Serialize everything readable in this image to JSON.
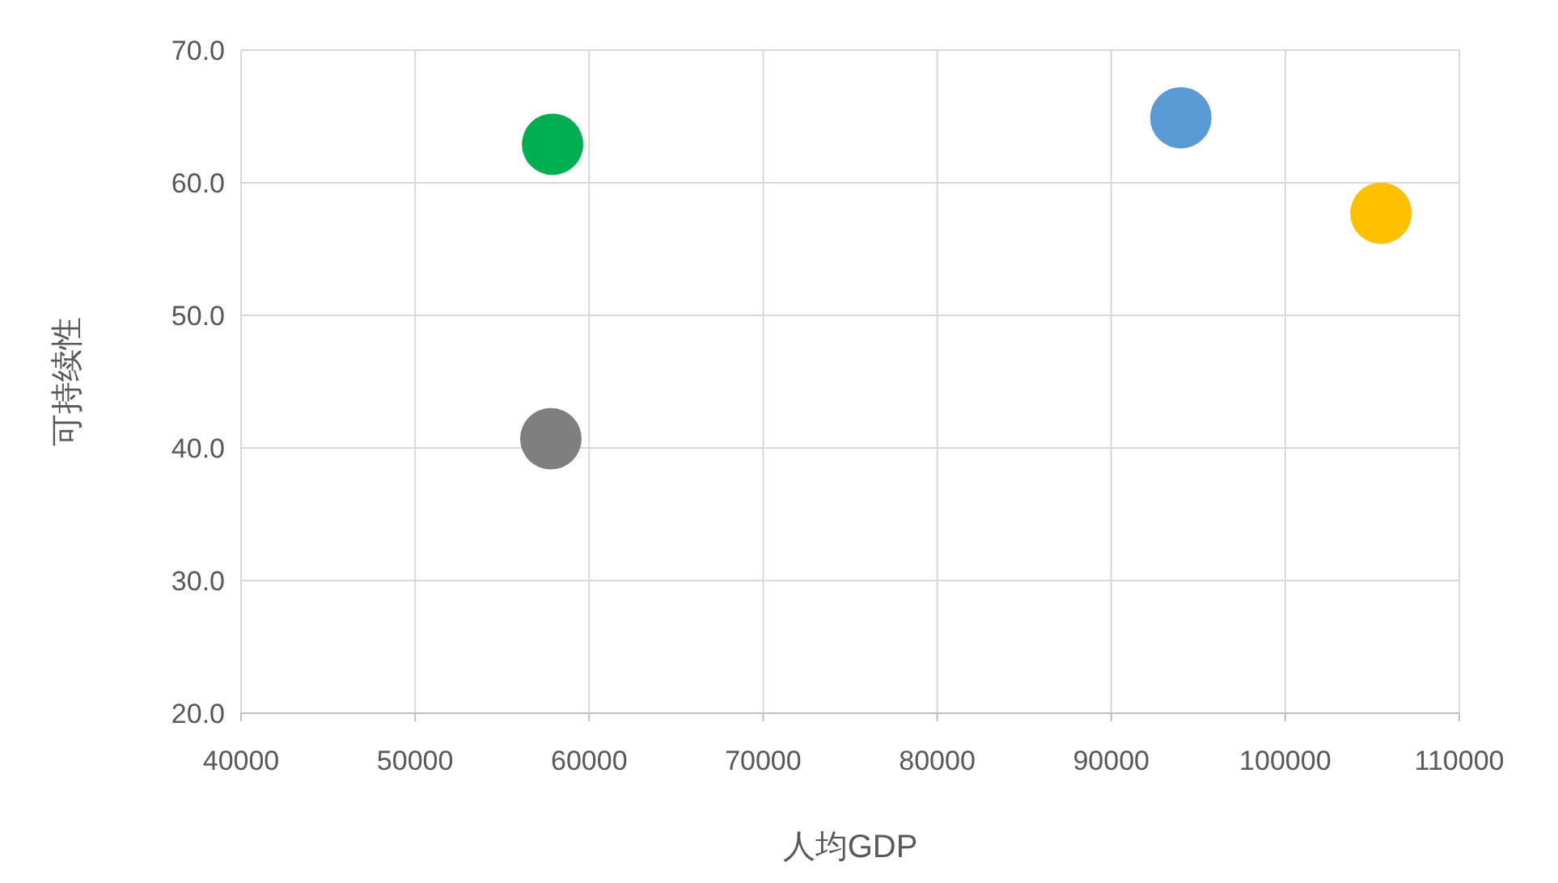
{
  "chart_data": {
    "type": "scatter",
    "xlabel": "人均GDP",
    "ylabel": "可持续性",
    "x": [
      57900,
      57800,
      94000,
      105500
    ],
    "values": [
      62.9,
      40.7,
      64.9,
      57.7
    ],
    "colors": [
      "#00b050",
      "#7f7f7f",
      "#5b9bd5",
      "#ffc000"
    ],
    "marker": "circle",
    "grid": true,
    "xlim": [
      40000,
      110000
    ],
    "xticks": [
      40000,
      50000,
      60000,
      70000,
      80000,
      90000,
      100000,
      110000
    ],
    "ylim": [
      20,
      70
    ],
    "yticks": [
      {
        "value": 20,
        "label": "20.0"
      },
      {
        "value": 30,
        "label": "30.0"
      },
      {
        "value": 40,
        "label": "40.0"
      },
      {
        "value": 50,
        "label": "50.0"
      },
      {
        "value": 60,
        "label": "60.0"
      },
      {
        "value": 70,
        "label": "70.0"
      }
    ]
  }
}
